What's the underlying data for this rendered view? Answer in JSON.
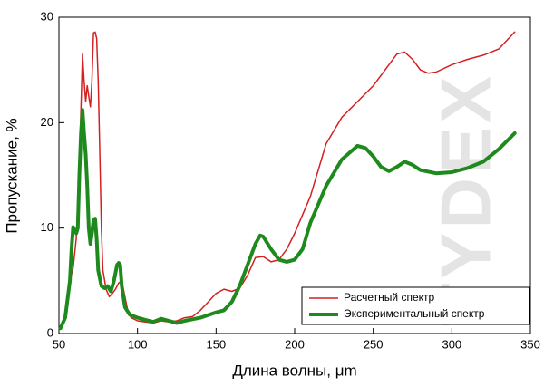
{
  "chart_data": {
    "type": "line",
    "xlabel": "Длина волны, μm",
    "ylabel": "Пропускание, %",
    "watermark": "TYDEX",
    "xlim": [
      50,
      350
    ],
    "xticks": [
      50,
      100,
      150,
      200,
      250,
      300,
      350
    ],
    "ylim": [
      0,
      30
    ],
    "yticks": [
      0,
      10,
      20,
      30
    ],
    "legend": "lower right",
    "series": [
      {
        "name": "Расчетный спектр",
        "color": "#d42020",
        "width": 1.5,
        "x": [
          51,
          55,
          57,
          59,
          61,
          63,
          65,
          66,
          67,
          68,
          69,
          70,
          71,
          72,
          73,
          74,
          75,
          76,
          77,
          78,
          80,
          82,
          84,
          86,
          88,
          90,
          92,
          94,
          96,
          100,
          105,
          110,
          115,
          120,
          125,
          130,
          135,
          140,
          145,
          150,
          155,
          160,
          165,
          170,
          175,
          180,
          185,
          190,
          195,
          200,
          210,
          220,
          230,
          240,
          250,
          260,
          265,
          270,
          275,
          280,
          285,
          290,
          300,
          310,
          320,
          330,
          340
        ],
        "values": [
          0.5,
          2,
          5,
          6.2,
          9,
          16,
          26.5,
          24,
          22,
          23.5,
          22.5,
          21.5,
          24,
          28.5,
          28.6,
          28,
          24,
          17,
          10,
          6,
          4.2,
          3.5,
          3.8,
          4.2,
          4.8,
          5,
          3.5,
          2,
          1.5,
          1.2,
          1.1,
          1,
          1.2,
          1.1,
          1.2,
          1.5,
          1.6,
          2.2,
          3,
          3.8,
          4.2,
          4,
          4.3,
          5.5,
          7.2,
          7.3,
          6.8,
          7,
          8,
          9.5,
          13,
          18,
          20.5,
          22,
          23.5,
          25.5,
          26.5,
          26.7,
          26,
          25,
          24.7,
          24.8,
          25.5,
          26,
          26.4,
          27,
          28.6
        ]
      },
      {
        "name": "Экспериментальный спектр",
        "color": "#1e8a1e",
        "width": 4,
        "x": [
          51,
          54,
          57,
          58,
          59,
          60,
          61,
          62,
          63,
          64,
          65,
          66,
          67,
          68,
          69,
          70,
          71,
          72,
          73,
          74,
          75,
          77,
          79,
          81,
          83,
          85,
          87,
          88,
          89,
          90,
          92,
          95,
          100,
          105,
          110,
          115,
          120,
          125,
          130,
          140,
          150,
          155,
          160,
          165,
          170,
          175,
          178,
          180,
          185,
          190,
          195,
          200,
          205,
          210,
          220,
          230,
          240,
          245,
          250,
          255,
          260,
          265,
          270,
          275,
          280,
          290,
          300,
          310,
          320,
          330,
          340
        ],
        "values": [
          0.5,
          1.5,
          5,
          8,
          10.1,
          9.8,
          9.5,
          10,
          15,
          19,
          21.2,
          19,
          17,
          14,
          10,
          8.5,
          9.5,
          10.8,
          10.9,
          9,
          6,
          4.5,
          4.3,
          4.5,
          4,
          5,
          6.5,
          6.7,
          6.5,
          4.5,
          2.5,
          1.8,
          1.5,
          1.3,
          1.1,
          1.4,
          1.2,
          1,
          1.2,
          1.5,
          2,
          2.2,
          3,
          4.5,
          6.5,
          8.5,
          9.3,
          9.2,
          8,
          7,
          6.8,
          7,
          8,
          10.5,
          14,
          16.5,
          17.8,
          17.6,
          16.8,
          15.8,
          15.4,
          15.8,
          16.3,
          16,
          15.5,
          15.2,
          15.3,
          15.7,
          16.3,
          17.5,
          19
        ]
      }
    ]
  }
}
